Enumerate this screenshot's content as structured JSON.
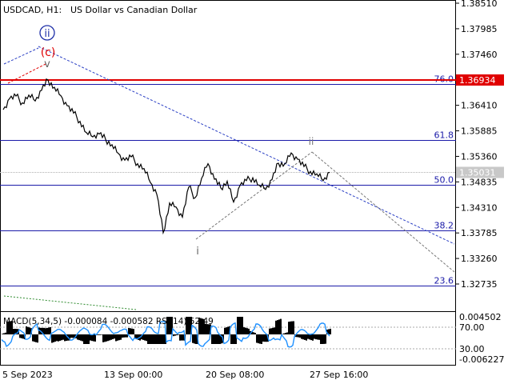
{
  "header": {
    "symbol": "USDCAD, H1:",
    "description": "US Dollar vs Canadian Dollar"
  },
  "price_axis": {
    "ticks": [
      "1.38510",
      "1.37985",
      "1.37460",
      "1.36935",
      "1.36410",
      "1.35885",
      "1.35360",
      "1.34835",
      "1.34310",
      "1.33785",
      "1.33260",
      "1.32735"
    ],
    "current_price_label": "1.35031",
    "marked_level_label": "1.36934"
  },
  "time_axis": {
    "labels": [
      "5 Sep 2023",
      "13 Sep 00:00",
      "20 Sep 08:00",
      "27 Sep 16:00"
    ]
  },
  "wave_labels": {
    "wave_ii_circled": "ii",
    "wave_c": "(c)",
    "wave_v": "v",
    "wave_ii": "ii",
    "wave_i": "i"
  },
  "fibonacci": {
    "levels": [
      "76.0",
      "61.8",
      "50.0",
      "38.2",
      "23.6"
    ]
  },
  "indicator": {
    "label": "MACD(5,34,5) -0.000084 -0.000582 RSI(14) 52.49",
    "ticks": [
      "0.004502",
      "70.00",
      "30.00",
      "-0.006227"
    ]
  },
  "colors": {
    "background": "#ffffff",
    "price_line": "#000000",
    "marked_level": "#e00000",
    "fib_line": "#1a1aa8",
    "trend_line": "#2a3fc4",
    "projection_line": "#777777",
    "rsi_line": "#1e90ff",
    "macd_hist": "#000000",
    "wave_circle": "#1e2fa8",
    "wave_c": "#e00000",
    "lower_trend": "#2e8b2e"
  },
  "chart_data": {
    "type": "line",
    "title": "USDCAD, H1: US Dollar vs Canadian Dollar",
    "xlabel": "",
    "ylabel": "",
    "ylim": [
      1.325,
      1.3864
    ],
    "series": [
      {
        "name": "USDCAD",
        "x_index": [
          0,
          4,
          8,
          12,
          16,
          20,
          24,
          28,
          32,
          36,
          40,
          44,
          48,
          52,
          56,
          60,
          64,
          68,
          72,
          76,
          80,
          84,
          88,
          92,
          96,
          100,
          104,
          108,
          112,
          116,
          120,
          124,
          128,
          132,
          136,
          140,
          144,
          148,
          152,
          156,
          160,
          164,
          168,
          172,
          176,
          180,
          184,
          188,
          192,
          196,
          200,
          204
        ],
        "values": [
          1.3632,
          1.3655,
          1.366,
          1.3646,
          1.3662,
          1.365,
          1.3672,
          1.3693,
          1.3678,
          1.3661,
          1.364,
          1.3625,
          1.3608,
          1.3585,
          1.3576,
          1.3582,
          1.3571,
          1.356,
          1.3542,
          1.3528,
          1.3535,
          1.3521,
          1.3511,
          1.3482,
          1.3458,
          1.3379,
          1.344,
          1.3432,
          1.3411,
          1.3473,
          1.3451,
          1.3491,
          1.3521,
          1.3489,
          1.3471,
          1.3485,
          1.3442,
          1.3476,
          1.3486,
          1.3492,
          1.3477,
          1.3468,
          1.3488,
          1.3522,
          1.3521,
          1.3543,
          1.353,
          1.3515,
          1.3505,
          1.35,
          1.3486,
          1.3503
        ]
      }
    ],
    "fib_levels": [
      {
        "label": "76.0",
        "price": 1.3685
      },
      {
        "label": "61.8",
        "price": 1.357
      },
      {
        "label": "50.0",
        "price": 1.3478
      },
      {
        "label": "38.2",
        "price": 1.3384
      },
      {
        "label": "23.6",
        "price": 1.327
      }
    ],
    "marked_level": 1.36934,
    "current_price": 1.35031,
    "macd_range": [
      -0.006227,
      0.004502
    ],
    "rsi_levels": [
      70,
      30
    ],
    "grid": false
  }
}
